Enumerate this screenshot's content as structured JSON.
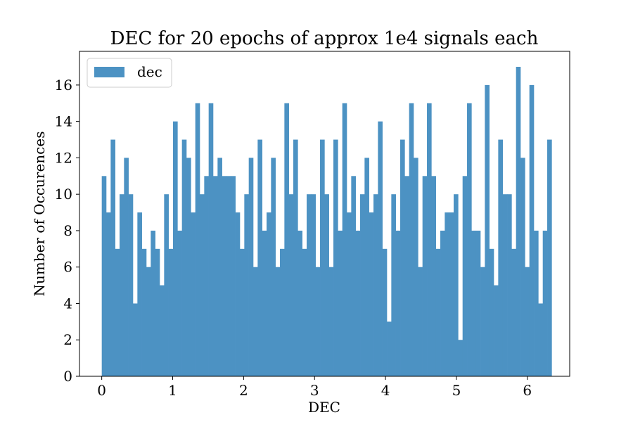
{
  "chart_data": {
    "type": "bar",
    "title": "DEC for 20 epochs of approx 1e4 signals each",
    "xlabel": "DEC",
    "ylabel": "Number of Occurences",
    "xlim": [
      -0.314,
      6.597
    ],
    "ylim": [
      0,
      17.85
    ],
    "bin_start": 0.0,
    "bin_width": 0.0628,
    "xticks": [
      0,
      1,
      2,
      3,
      4,
      5,
      6
    ],
    "yticks": [
      0,
      2,
      4,
      6,
      8,
      10,
      12,
      14,
      16
    ],
    "grid": false,
    "legend_position": "upper-left",
    "series": [
      {
        "name": "dec",
        "color": "#4c92c3",
        "values": [
          11,
          9,
          13,
          7,
          10,
          12,
          10,
          4,
          9,
          7,
          6,
          8,
          7,
          5,
          10,
          7,
          14,
          8,
          13,
          12,
          9,
          15,
          10,
          11,
          15,
          11,
          12,
          11,
          11,
          11,
          9,
          7,
          10,
          12,
          6,
          13,
          8,
          9,
          12,
          6,
          7,
          15,
          10,
          13,
          8,
          7,
          10,
          10,
          6,
          13,
          10,
          6,
          13,
          8,
          15,
          9,
          11,
          8,
          10,
          12,
          9,
          10,
          14,
          7,
          3,
          10,
          8,
          13,
          11,
          15,
          12,
          6,
          11,
          15,
          11,
          7,
          8,
          9,
          9,
          10,
          2,
          11,
          15,
          8,
          8,
          6,
          16,
          7,
          5,
          13,
          10,
          10,
          7,
          17,
          12,
          6,
          16,
          8,
          4,
          8,
          13
        ]
      }
    ]
  }
}
